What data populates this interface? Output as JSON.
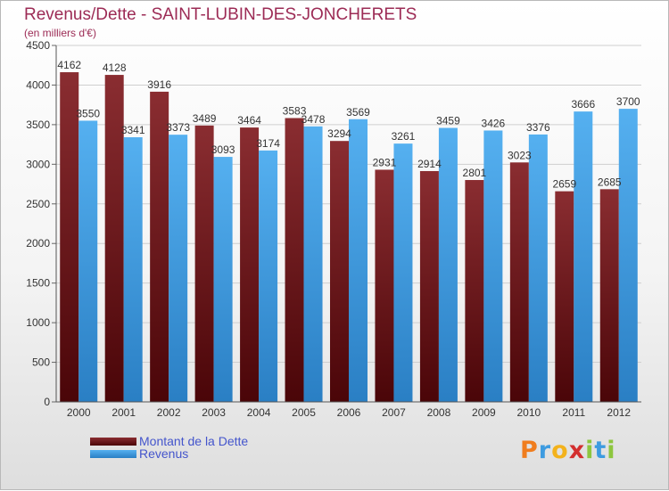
{
  "header": {
    "title": "Revenus/Dette - SAINT-LUBIN-DES-JONCHERETS",
    "subtitle": "(en milliers d'€)"
  },
  "colors": {
    "dette": "#7a1e22",
    "revenus": "#3d9be0",
    "title": "#9c2b55",
    "legend_text": "#4455cc"
  },
  "legend": [
    {
      "label": "Montant de la Dette",
      "color": "#7a1e22"
    },
    {
      "label": "Revenus",
      "color": "#3d9be0"
    }
  ],
  "logo": {
    "letters": [
      "P",
      "r",
      "o",
      "x",
      "i",
      "t",
      "i"
    ],
    "colors": [
      "#f07d1e",
      "#3d9be0",
      "#f3b21c",
      "#d32f2f",
      "#8dc63f",
      "#3d9be0",
      "#8dc63f"
    ]
  },
  "chart_data": {
    "type": "bar",
    "title": "Revenus/Dette - SAINT-LUBIN-DES-JONCHERETS",
    "ylabel": "(en milliers d'€)",
    "categories": [
      "2000",
      "2001",
      "2002",
      "2003",
      "2004",
      "2005",
      "2006",
      "2007",
      "2008",
      "2009",
      "2010",
      "2011",
      "2012"
    ],
    "series": [
      {
        "name": "Montant de la Dette",
        "values": [
          4162,
          4128,
          3916,
          3489,
          3464,
          3583,
          3294,
          2931,
          2914,
          2801,
          3023,
          2659,
          2685
        ]
      },
      {
        "name": "Revenus",
        "values": [
          3550,
          3341,
          3373,
          3093,
          3174,
          3478,
          3569,
          3261,
          3459,
          3426,
          3376,
          3666,
          3700
        ]
      }
    ],
    "ylim": [
      0,
      4500
    ],
    "yticks": [
      0,
      500,
      1000,
      1500,
      2000,
      2500,
      3000,
      3500,
      4000,
      4500
    ],
    "grid": true,
    "legend_position": "bottom-left"
  }
}
